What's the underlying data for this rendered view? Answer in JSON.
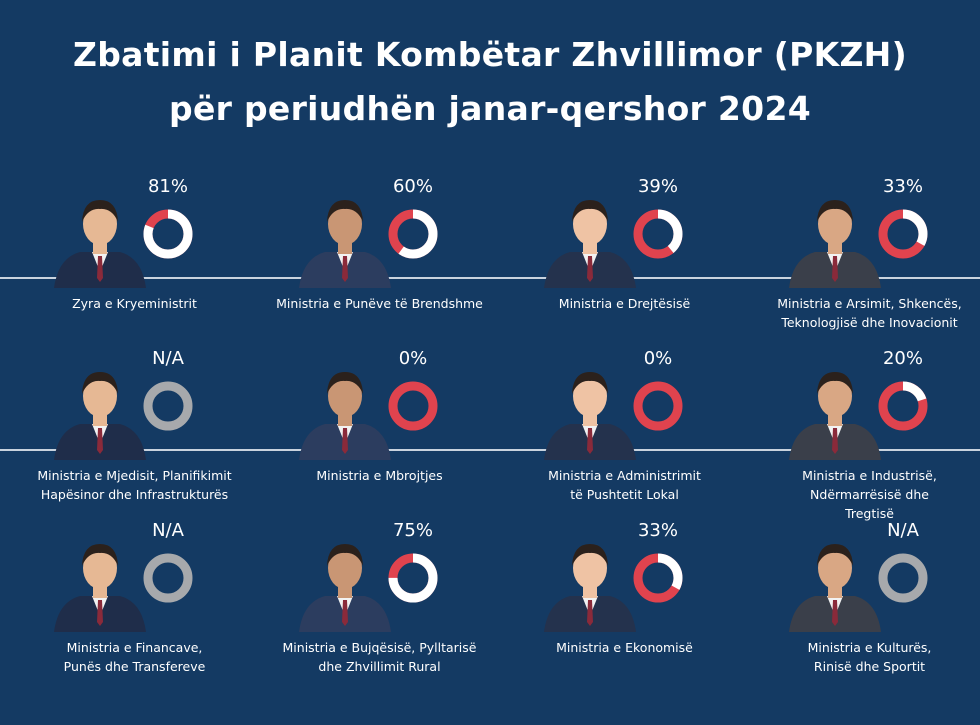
{
  "title_line1": "Zbatimi i Planit Kombëtar Zhvillimor (PKZH)",
  "title_line2": "për periudhën janar-qershor 2024",
  "colors": {
    "background": "#143a63",
    "progress": "#e0434e",
    "track": "#ffffff",
    "na": "#a7a9ac",
    "rule": "#c9d3de"
  },
  "ministries": [
    {
      "label": "Zyra e Kryeministrit",
      "percent_label": "81%",
      "progress": 0.81
    },
    {
      "label": "Ministria e Punëve të Brendshme",
      "percent_label": "60%",
      "progress": 0.6
    },
    {
      "label": "Ministria e Drejtësisë",
      "percent_label": "39%",
      "progress": 0.39
    },
    {
      "label": "Ministria e Arsimit, Shkencës,\nTeknologjisë dhe Inovacionit",
      "percent_label": "33%",
      "progress": 0.33
    },
    {
      "label": "Ministria e Mjedisit, Planifikimit\nHapësinor dhe Infrastrukturës",
      "percent_label": "N/A",
      "progress": null
    },
    {
      "label": "Ministria e Mbrojtjes",
      "percent_label": "0%",
      "progress": 0
    },
    {
      "label": "Ministria e Administrimit\ntë Pushtetit Lokal",
      "percent_label": "0%",
      "progress": 0
    },
    {
      "label": "Ministria e Industrisë,\nNdërmarrësisë dhe\nTregtisë",
      "percent_label": "20%",
      "progress": 0.2
    },
    {
      "label": "Ministria e Financave,\nPunës dhe Transfereve",
      "percent_label": "N/A",
      "progress": null
    },
    {
      "label": "Ministria e Bujqësisë, Pylltarisë\ndhe Zhvillimit Rural",
      "percent_label": "75%",
      "progress": 0.75
    },
    {
      "label": "Ministria  e Ekonomisë",
      "percent_label": "33%",
      "progress": 0.33
    },
    {
      "label": "Ministria e Kulturës,\nRinisë dhe Sportit",
      "percent_label": "N/A",
      "progress": null
    }
  ]
}
